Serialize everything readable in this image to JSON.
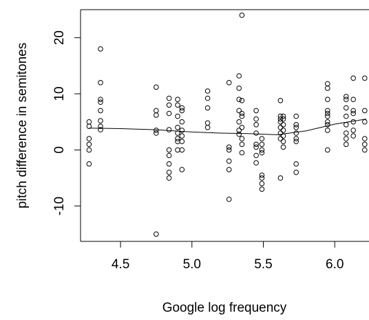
{
  "chart_data": {
    "type": "scatter",
    "xlabel": "Google log frequency",
    "ylabel": "pitch difference in semitones",
    "xlim": [
      4.22,
      6.24
    ],
    "ylim": [
      -16.3,
      25.0
    ],
    "x_ticks": [
      "4.5",
      "5.0",
      "5.5",
      "6.0"
    ],
    "y_ticks": [
      "-10",
      "0",
      "10",
      "20"
    ],
    "grid": false,
    "legend": "none",
    "marker": "open-circle",
    "points": [
      [
        4.28,
        5.0
      ],
      [
        4.28,
        4.2
      ],
      [
        4.28,
        2.0
      ],
      [
        4.28,
        1.0
      ],
      [
        4.28,
        0.0
      ],
      [
        4.28,
        -2.5
      ],
      [
        4.36,
        18.0
      ],
      [
        4.36,
        12.0
      ],
      [
        4.36,
        9.0
      ],
      [
        4.36,
        8.5
      ],
      [
        4.36,
        7.0
      ],
      [
        4.36,
        5.2
      ],
      [
        4.36,
        4.2
      ],
      [
        4.36,
        3.6
      ],
      [
        4.75,
        11.2
      ],
      [
        4.75,
        7.0
      ],
      [
        4.75,
        6.2
      ],
      [
        4.75,
        3.5
      ],
      [
        4.75,
        3.0
      ],
      [
        4.75,
        -15.0
      ],
      [
        4.84,
        9.2
      ],
      [
        4.84,
        8.0
      ],
      [
        4.84,
        6.5
      ],
      [
        4.84,
        3.6
      ],
      [
        4.84,
        0.0
      ],
      [
        4.84,
        -1.0
      ],
      [
        4.84,
        -2.5
      ],
      [
        4.84,
        -4.0
      ],
      [
        4.84,
        -5.0
      ],
      [
        4.9,
        9.0
      ],
      [
        4.9,
        8.0
      ],
      [
        4.9,
        6.0
      ],
      [
        4.9,
        4.0
      ],
      [
        4.9,
        3.0
      ],
      [
        4.9,
        2.0
      ],
      [
        4.9,
        1.5
      ],
      [
        4.9,
        0.0
      ],
      [
        4.93,
        7.5
      ],
      [
        4.93,
        7.0
      ],
      [
        4.93,
        5.0
      ],
      [
        4.93,
        3.5
      ],
      [
        4.93,
        2.5
      ],
      [
        4.93,
        1.5
      ],
      [
        4.93,
        0.0
      ],
      [
        4.93,
        -3.5
      ],
      [
        5.11,
        10.5
      ],
      [
        5.11,
        9.2
      ],
      [
        5.11,
        7.5
      ],
      [
        5.11,
        4.8
      ],
      [
        5.11,
        4.0
      ],
      [
        5.26,
        12.0
      ],
      [
        5.26,
        0.5
      ],
      [
        5.26,
        0.0
      ],
      [
        5.26,
        -2.0
      ],
      [
        5.26,
        -3.5
      ],
      [
        5.26,
        -8.8
      ],
      [
        5.33,
        13.2
      ],
      [
        5.33,
        11.0
      ],
      [
        5.33,
        9.0
      ],
      [
        5.33,
        7.0
      ],
      [
        5.33,
        5.0
      ],
      [
        5.33,
        3.5
      ],
      [
        5.33,
        2.8
      ],
      [
        5.35,
        24.0
      ],
      [
        5.35,
        8.8
      ],
      [
        5.35,
        6.5
      ],
      [
        5.35,
        6.0
      ],
      [
        5.35,
        4.0
      ],
      [
        5.35,
        2.0
      ],
      [
        5.35,
        1.0
      ],
      [
        5.35,
        -0.5
      ],
      [
        5.45,
        7.0
      ],
      [
        5.45,
        5.5
      ],
      [
        5.45,
        4.5
      ],
      [
        5.45,
        3.0
      ],
      [
        5.45,
        1.0
      ],
      [
        5.45,
        0.5
      ],
      [
        5.45,
        -1.0
      ],
      [
        5.45,
        -2.3
      ],
      [
        5.49,
        2.0
      ],
      [
        5.49,
        1.0
      ],
      [
        5.49,
        0.0
      ],
      [
        5.49,
        -0.5
      ],
      [
        5.49,
        -4.5
      ],
      [
        5.49,
        -5.0
      ],
      [
        5.49,
        -6.0
      ],
      [
        5.49,
        -7.0
      ],
      [
        5.62,
        8.8
      ],
      [
        5.62,
        6.0
      ],
      [
        5.62,
        5.5
      ],
      [
        5.62,
        5.0
      ],
      [
        5.62,
        4.0
      ],
      [
        5.62,
        3.0
      ],
      [
        5.62,
        2.0
      ],
      [
        5.62,
        -5.0
      ],
      [
        5.64,
        6.0
      ],
      [
        5.64,
        5.5
      ],
      [
        5.64,
        4.5
      ],
      [
        5.64,
        3.5
      ],
      [
        5.64,
        2.5
      ],
      [
        5.64,
        1.5
      ],
      [
        5.64,
        0.5
      ],
      [
        5.73,
        6.0
      ],
      [
        5.73,
        4.5
      ],
      [
        5.73,
        4.0
      ],
      [
        5.73,
        3.0
      ],
      [
        5.73,
        2.0
      ],
      [
        5.73,
        1.5
      ],
      [
        5.73,
        -2.5
      ],
      [
        5.73,
        -4.0
      ],
      [
        5.95,
        11.8
      ],
      [
        5.95,
        11.0
      ],
      [
        5.95,
        9.0
      ],
      [
        5.95,
        7.0
      ],
      [
        5.95,
        6.5
      ],
      [
        5.95,
        6.0
      ],
      [
        5.95,
        5.0
      ],
      [
        5.95,
        4.5
      ],
      [
        5.95,
        3.5
      ],
      [
        5.95,
        0.0
      ],
      [
        6.08,
        9.5
      ],
      [
        6.08,
        9.0
      ],
      [
        6.08,
        7.5
      ],
      [
        6.08,
        6.0
      ],
      [
        6.08,
        4.5
      ],
      [
        6.08,
        3.0
      ],
      [
        6.08,
        2.0
      ],
      [
        6.08,
        1.0
      ],
      [
        6.13,
        12.8
      ],
      [
        6.13,
        9.0
      ],
      [
        6.13,
        7.0
      ],
      [
        6.13,
        6.5
      ],
      [
        6.13,
        5.0
      ],
      [
        6.13,
        3.5
      ],
      [
        6.13,
        2.5
      ],
      [
        6.21,
        12.8
      ],
      [
        6.21,
        7.0
      ],
      [
        6.21,
        5.0
      ],
      [
        6.21,
        2.0
      ],
      [
        6.21,
        1.0
      ],
      [
        6.21,
        0.0
      ]
    ],
    "trend_line": [
      [
        4.28,
        3.9
      ],
      [
        4.5,
        3.8
      ],
      [
        4.75,
        3.6
      ],
      [
        5.0,
        3.2
      ],
      [
        5.2,
        3.0
      ],
      [
        5.4,
        2.9
      ],
      [
        5.6,
        2.7
      ],
      [
        5.8,
        3.4
      ],
      [
        6.0,
        4.6
      ],
      [
        6.22,
        5.5
      ]
    ]
  }
}
